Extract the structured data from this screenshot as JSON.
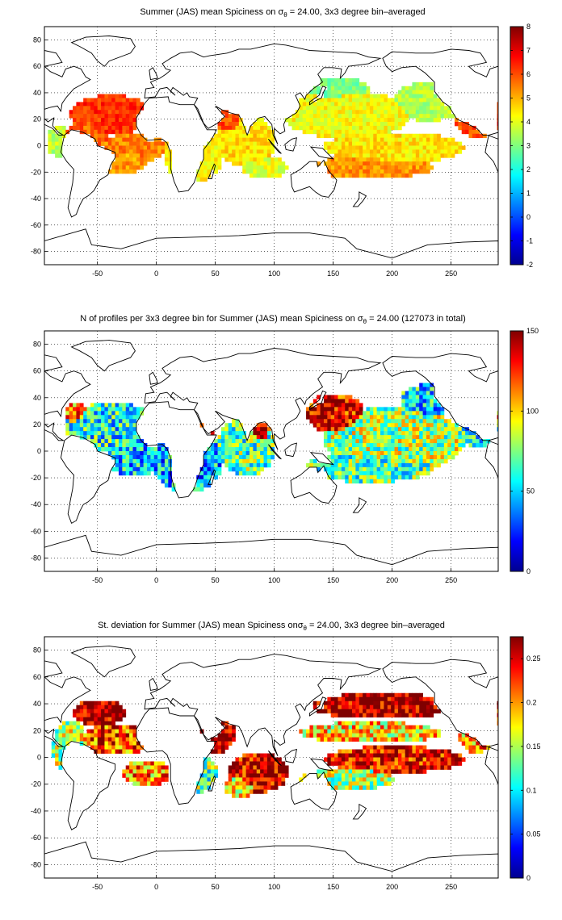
{
  "panels": [
    {
      "id": "mean",
      "title_pre": "Summer (JAS) mean Spiciness on ",
      "title_sigma": "σ",
      "title_sub": "θ",
      "title_post": " = 24.00, 3x3 degree bin–averaged",
      "colorbar": {
        "min": -2,
        "max": 8,
        "ticks": [
          "-2",
          "-1",
          "0",
          "1",
          "2",
          "3",
          "4",
          "5",
          "6",
          "7",
          "8"
        ]
      }
    },
    {
      "id": "count",
      "title_pre": "N of profiles per 3x3 degree bin for Summer (JAS) mean Spiciness on ",
      "title_sigma": "σ",
      "title_sub": "θ",
      "title_post": " = 24.00 (127073 in total)",
      "colorbar": {
        "min": 0,
        "max": 150,
        "ticks": [
          "0",
          "50",
          "100",
          "150"
        ]
      }
    },
    {
      "id": "std",
      "title_pre": "St. deviation for Summer (JAS) mean Spiciness on",
      "title_sigma": "σ",
      "title_sub": "θ",
      "title_post": " = 24.00, 3x3 degree bin–averaged",
      "colorbar": {
        "min": 0,
        "max": 0.275,
        "ticks": [
          "0",
          "0.05",
          "0.1",
          "0.15",
          "0.2",
          "0.25"
        ]
      }
    }
  ],
  "axes": {
    "xlim": [
      -95,
      290
    ],
    "ylim": [
      -90,
      90
    ],
    "xticks": [
      "-50",
      "0",
      "50",
      "100",
      "150",
      "200",
      "250"
    ],
    "yticks": [
      "-80",
      "-60",
      "-40",
      "-20",
      "0",
      "20",
      "40",
      "60",
      "80"
    ],
    "grid": "dotted"
  },
  "colormap": "jet"
}
